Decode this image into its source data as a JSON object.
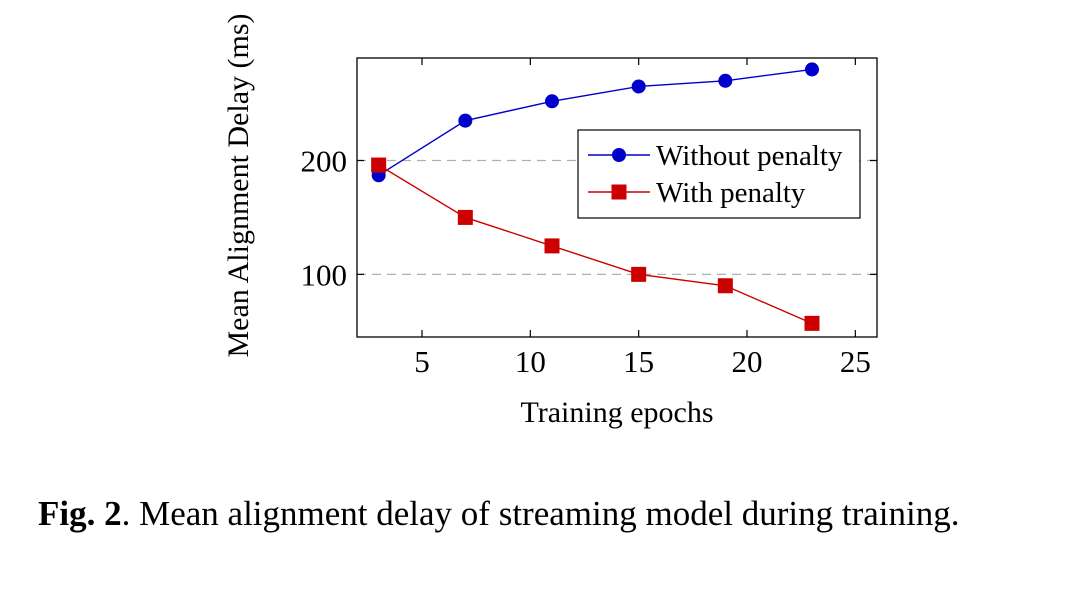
{
  "chart_data": {
    "type": "line",
    "xlabel": "Training epochs",
    "ylabel": "Mean Alignment Delay (ms)",
    "xlim": [
      2,
      26
    ],
    "ylim": [
      45,
      290
    ],
    "xticks": [
      5,
      10,
      15,
      20,
      25
    ],
    "yticks": [
      100,
      200
    ],
    "grid": "horizontal-dashed",
    "legend_position": "right",
    "series": [
      {
        "name": "Without penalty",
        "color": "#0000cc",
        "marker": "circle",
        "x": [
          3,
          7,
          11,
          15,
          19,
          23
        ],
        "y": [
          187,
          235,
          252,
          265,
          270,
          280
        ]
      },
      {
        "name": "With penalty",
        "color": "#cc0000",
        "marker": "square",
        "x": [
          3,
          7,
          11,
          15,
          19,
          23
        ],
        "y": [
          196,
          150,
          125,
          100,
          90,
          57
        ]
      }
    ]
  },
  "caption": {
    "label": "Fig. 2",
    "text": ". Mean alignment delay of streaming model during training."
  }
}
